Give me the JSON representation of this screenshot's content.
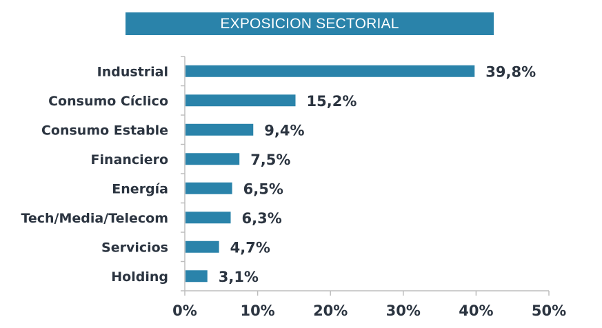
{
  "chart_data": {
    "type": "bar",
    "orientation": "horizontal",
    "title": "EXPOSICION SECTORIAL",
    "categories": [
      "Industrial",
      "Consumo Cíclico",
      "Consumo Estable",
      "Financiero",
      "Energía",
      "Tech/Media/Telecom",
      "Servicios",
      "Holding"
    ],
    "values": [
      39.8,
      15.2,
      9.4,
      7.5,
      6.5,
      6.3,
      4.7,
      3.1
    ],
    "value_labels": [
      "39,8%",
      "15,2%",
      "9,4%",
      "7,5%",
      "6,5%",
      "6,3%",
      "4,7%",
      "3,1%"
    ],
    "xlim": [
      0,
      50
    ],
    "xticks": [
      0,
      10,
      20,
      30,
      40,
      50
    ],
    "xtick_labels": [
      "0%",
      "10%",
      "20%",
      "30%",
      "40%",
      "50%"
    ],
    "xlabel": "",
    "ylabel": "",
    "grid": false,
    "legend": "none",
    "bar_color": "#2a83aa",
    "text_color": "#2b3440",
    "axis_color": "#bdbdbd"
  }
}
